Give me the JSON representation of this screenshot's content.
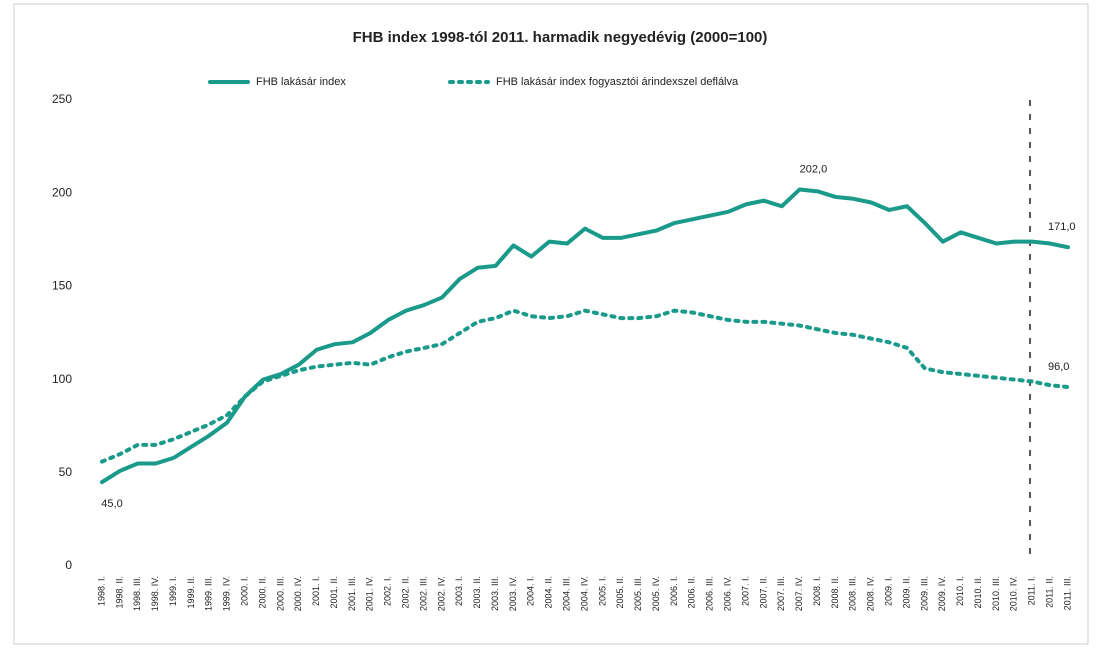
{
  "chart_data": {
    "type": "line",
    "title": "FHB index 1998-tól 2011. harmadik negyedévig (2000=100)",
    "categories": [
      "1998. I.",
      "1998. II.",
      "1998. III.",
      "1998. IV.",
      "1999. I.",
      "1999. II.",
      "1999. III.",
      "1999. IV.",
      "2000. I.",
      "2000. II.",
      "2000. III.",
      "2000. IV.",
      "2001. I.",
      "2001. II.",
      "2001. III.",
      "2001. IV.",
      "2002. I.",
      "2002. II.",
      "2002. III.",
      "2002. IV.",
      "2003. I.",
      "2003. II.",
      "2003. III.",
      "2003. IV.",
      "2004. I.",
      "2004. II.",
      "2004. III.",
      "2004. IV.",
      "2005. I.",
      "2005. II.",
      "2005. III.",
      "2005. IV.",
      "2006. I.",
      "2006. II.",
      "2006. III.",
      "2006. IV.",
      "2007. I.",
      "2007. II.",
      "2007. III.",
      "2007. IV.",
      "2008. I.",
      "2008. II.",
      "2008. III.",
      "2008. IV.",
      "2009. I.",
      "2009. II.",
      "2009. III.",
      "2009. IV.",
      "2010. I.",
      "2010. II.",
      "2010. III.",
      "2010. IV.",
      "2011. I.",
      "2011. II.",
      "2011. III."
    ],
    "series": [
      {
        "name": "FHB lakásár index",
        "color": "#1a9a8a",
        "style": "solid",
        "values": [
          45,
          51,
          55,
          55,
          58,
          64,
          70,
          77,
          91,
          100,
          103,
          108,
          116,
          119,
          120,
          125,
          132,
          137,
          140,
          144,
          154,
          160,
          161,
          172,
          166,
          174,
          173,
          181,
          176,
          176,
          178,
          180,
          184,
          186,
          188,
          190,
          194,
          196,
          193,
          202,
          201,
          198,
          197,
          195,
          191,
          193,
          184,
          174,
          179,
          176,
          173,
          174,
          174,
          173,
          171
        ],
        "value_labels": [
          "45,0",
          null,
          null,
          null,
          null,
          null,
          null,
          null,
          null,
          null,
          null,
          null,
          null,
          null,
          null,
          null,
          null,
          null,
          null,
          null,
          null,
          null,
          null,
          null,
          null,
          null,
          null,
          null,
          null,
          null,
          null,
          null,
          null,
          null,
          null,
          null,
          null,
          null,
          null,
          "202,0",
          null,
          null,
          null,
          null,
          null,
          null,
          null,
          null,
          null,
          null,
          null,
          null,
          null,
          null,
          "171,0"
        ]
      },
      {
        "name": "FHB lakásár index fogyasztói árindexszel deflálva",
        "color": "#1a9a8a",
        "style": "dotted",
        "values": [
          56,
          60,
          65,
          65,
          68,
          72,
          76,
          81,
          91,
          99,
          102,
          105,
          107,
          108,
          109,
          108,
          112,
          115,
          117,
          119,
          125,
          131,
          133,
          137,
          134,
          133,
          134,
          137,
          135,
          133,
          133,
          134,
          137,
          136,
          134,
          132,
          131,
          131,
          130,
          129,
          127,
          125,
          124,
          122,
          120,
          117,
          106,
          104,
          103,
          102,
          101,
          100,
          99,
          97,
          96
        ],
        "value_labels": [
          null,
          null,
          null,
          null,
          null,
          null,
          null,
          null,
          null,
          null,
          null,
          null,
          null,
          null,
          null,
          null,
          null,
          null,
          null,
          null,
          null,
          null,
          null,
          null,
          null,
          null,
          null,
          null,
          null,
          null,
          null,
          null,
          null,
          null,
          null,
          null,
          null,
          null,
          null,
          null,
          null,
          null,
          null,
          null,
          null,
          null,
          null,
          null,
          null,
          null,
          null,
          null,
          null,
          null,
          "96,0"
        ]
      }
    ],
    "ylim": [
      0,
      250
    ],
    "yticks": [
      0,
      50,
      100,
      150,
      200,
      250
    ],
    "grid": false
  }
}
